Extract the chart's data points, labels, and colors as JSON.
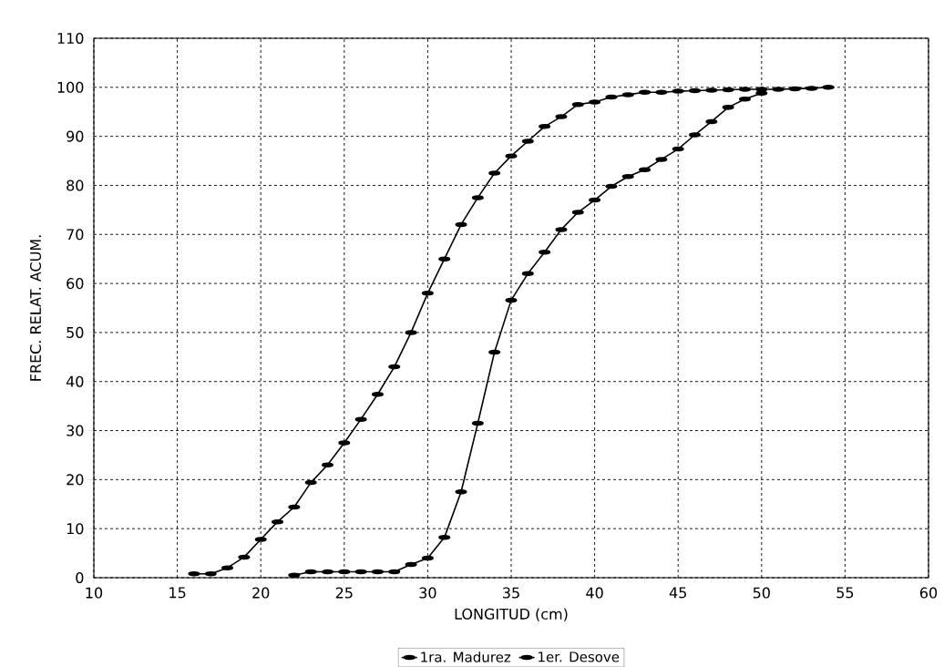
{
  "chart_data": {
    "type": "line",
    "xlabel": "LONGITUD (cm)",
    "ylabel": "FREC. RELAT. ACUM.",
    "xlim": [
      10,
      60
    ],
    "ylim": [
      0,
      110
    ],
    "xticks": [
      10,
      15,
      20,
      25,
      30,
      35,
      40,
      45,
      50,
      55,
      60
    ],
    "yticks": [
      0,
      10,
      20,
      30,
      40,
      50,
      60,
      70,
      80,
      90,
      100,
      110
    ],
    "grid": true,
    "legend": "bottom",
    "marker": "circle",
    "line_style": "solid",
    "series": [
      {
        "name": "1ra. Madurez",
        "color": "#000000",
        "x": [
          16,
          17,
          18,
          19,
          20,
          21,
          22,
          23,
          24,
          25,
          26,
          27,
          28,
          29,
          30,
          31,
          32,
          33,
          34,
          35,
          36,
          37,
          38,
          39,
          40,
          41,
          42,
          43,
          44,
          45,
          46,
          47,
          48,
          49,
          50,
          51,
          52,
          53,
          54
        ],
        "values": [
          0.8,
          0.8,
          2,
          4.2,
          7.8,
          11.4,
          14.4,
          19.4,
          23,
          27.5,
          32.3,
          37.4,
          43,
          50,
          58,
          65,
          72,
          77.5,
          82.5,
          86,
          89,
          92,
          94,
          96.5,
          97,
          98,
          98.5,
          99,
          99,
          99.2,
          99.3,
          99.4,
          99.5,
          99.6,
          99.6,
          99.6,
          99.7,
          99.8,
          100
        ]
      },
      {
        "name": "1er. Desove",
        "color": "#000000",
        "x": [
          22,
          23,
          24,
          25,
          26,
          27,
          28,
          29,
          30,
          31,
          32,
          33,
          34,
          35,
          36,
          37,
          38,
          39,
          40,
          41,
          42,
          43,
          44,
          45,
          46,
          47,
          48,
          49,
          50
        ],
        "values": [
          0.5,
          1.2,
          1.2,
          1.2,
          1.2,
          1.2,
          1.2,
          2.7,
          4,
          8.2,
          17.5,
          31.5,
          46,
          56.6,
          62,
          66.4,
          71,
          74.5,
          77,
          79.8,
          81.8,
          83.2,
          85.3,
          87.4,
          90.3,
          93,
          95.9,
          97.6,
          98.8
        ]
      }
    ]
  }
}
